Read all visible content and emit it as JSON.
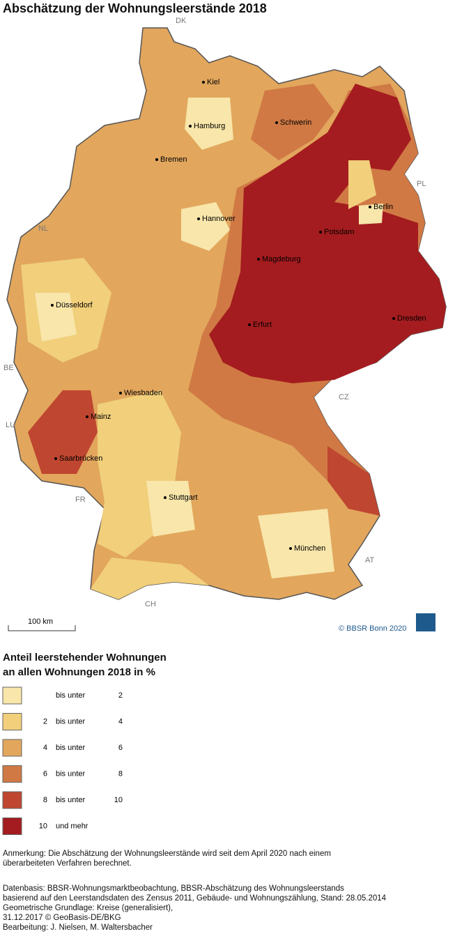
{
  "header": {
    "title": "Abschätzung der Wohnungsleerstände 2018"
  },
  "map": {
    "countries": [
      "DK",
      "PL",
      "NL",
      "BE",
      "LU",
      "FR",
      "CH",
      "AT",
      "CZ"
    ],
    "cities": [
      "Kiel",
      "Hamburg",
      "Schwerin",
      "Bremen",
      "Berlin",
      "Hannover",
      "Potsdam",
      "Magdeburg",
      "Düsseldorf",
      "Erfurt",
      "Dresden",
      "Wiesbaden",
      "Mainz",
      "Saarbrücken",
      "Stuttgart",
      "München"
    ],
    "scale": "100 km",
    "copyright": "© BBSR Bonn 2020"
  },
  "legend": {
    "title": [
      "Anteil leerstehender Wohnungen",
      "an allen Wohnungen 2018 in %"
    ],
    "items": [
      {
        "text": "bis unter",
        "to": "2",
        "color": "#f8e6aa"
      },
      {
        "from": "2",
        "text": "bis unter",
        "to": "4",
        "color": "#f1cf7b"
      },
      {
        "from": "4",
        "text": "bis unter",
        "to": "6",
        "color": "#e2a65d"
      },
      {
        "from": "6",
        "text": "bis unter",
        "to": "8",
        "color": "#d07944"
      },
      {
        "from": "8",
        "text": "bis unter",
        "to": "10",
        "color": "#bf4630"
      },
      {
        "from": "10",
        "text": "und mehr",
        "color": "#a41c1f"
      }
    ]
  },
  "notes": {
    "remark": [
      "Anmerkung: Die Abschätzung der Wohnungsleerstände wird seit dem April 2020 nach einem",
      "überarbeiteten Verfahren berechnet."
    ],
    "source": [
      "Datenbasis: BBSR-Wohnungsmarktbeobachtung, BBSR-Abschätzung des Wohnungsleerstands",
      "basierend auf den Leerstandsdaten des Zensus 2011, Gebäude- und Wohnungszählung, Stand: 28.05.2014",
      "Geometrische Grundlage: Kreise (generalisiert),",
      "31.12.2017 © GeoBasis-DE/BKG",
      "Bearbeitung: J. Nielsen, M. Waltersbacher"
    ]
  }
}
